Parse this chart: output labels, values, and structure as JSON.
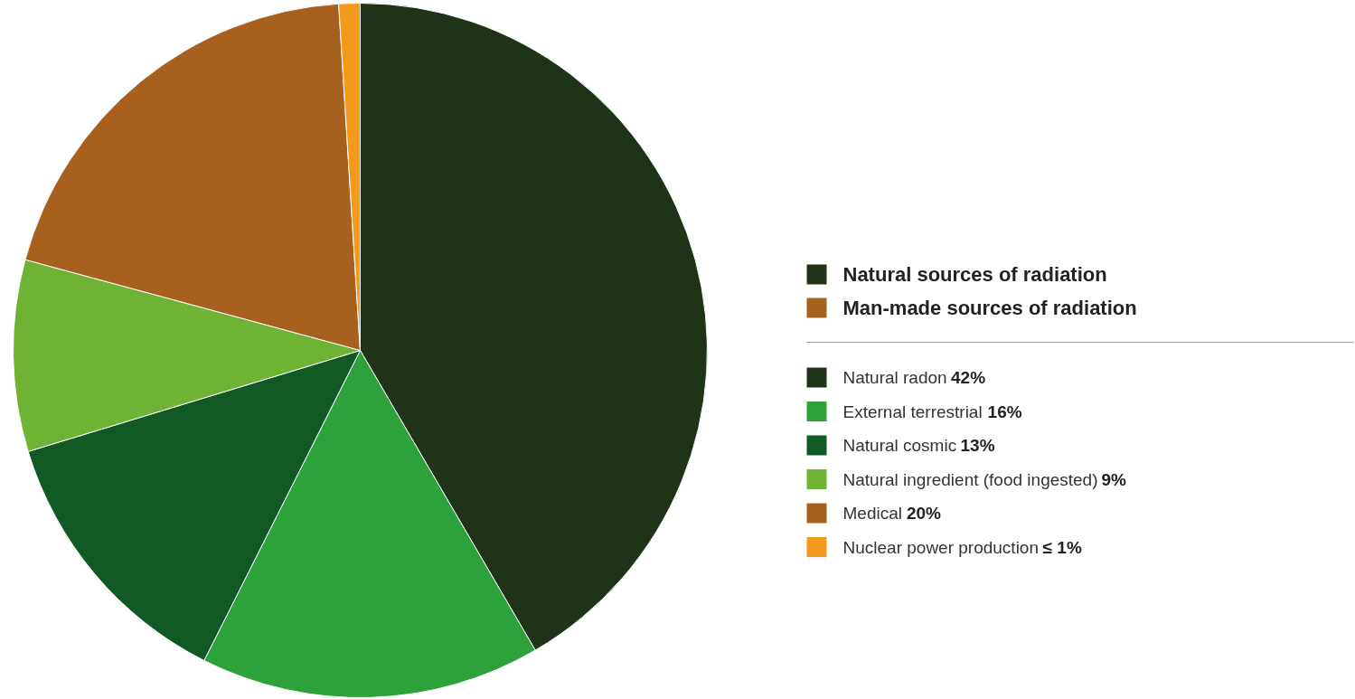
{
  "chart_data": {
    "type": "pie",
    "categories": [
      "Natural radon",
      "External terrestrial",
      "Natural cosmic",
      "Natural ingredient (food ingested)",
      "Medical",
      "Nuclear power production"
    ],
    "values": [
      42,
      16,
      13,
      9,
      20,
      1
    ],
    "value_labels": [
      "42%",
      "16%",
      "13%",
      "9%",
      "20%",
      "≤ 1%"
    ],
    "colors": [
      "#1f3318",
      "#2ea23a",
      "#125a25",
      "#6fb334",
      "#a8601f",
      "#f39a1c"
    ],
    "annotations": [
      "Natural sources of radiation",
      "Man-made sources of radiation"
    ],
    "legend": "right"
  }
}
